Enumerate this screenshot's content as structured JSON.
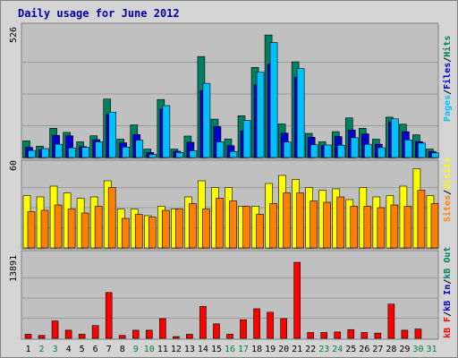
{
  "title": "Daily usage for June 2012",
  "colors": {
    "background": "#d4d4d4",
    "plot": "#c0c0c0",
    "pages": "#008060",
    "files": "#0000d0",
    "hits": "#00c0ff",
    "visits": "#ffff00",
    "sites": "#ff8000",
    "kbin": "#0000d0",
    "kbout": "#008060",
    "kbf": "#ff0000"
  },
  "chart_data": [
    {
      "type": "bar",
      "panel": "hits",
      "categories": [
        "1",
        "2",
        "3",
        "4",
        "5",
        "6",
        "7",
        "8",
        "9",
        "10",
        "11",
        "12",
        "13",
        "14",
        "15",
        "16",
        "17",
        "18",
        "19",
        "20",
        "21",
        "22",
        "23",
        "24",
        "25",
        "26",
        "27",
        "28",
        "29",
        "30",
        "31"
      ],
      "max_label": "526",
      "ylim": [
        0,
        526
      ],
      "side_label": [
        "Pages",
        "Files",
        "Hits"
      ],
      "series": [
        {
          "name": "Pages",
          "values": [
            69,
            47,
            121,
            104,
            65,
            90,
            242,
            76,
            135,
            35,
            240,
            35,
            89,
            418,
            159,
            77,
            173,
            373,
            507,
            139,
            396,
            100,
            65,
            107,
            164,
            121,
            76,
            167,
            138,
            94,
            35
          ]
        },
        {
          "name": "Files",
          "values": [
            42,
            32,
            92,
            90,
            45,
            74,
            178,
            61,
            95,
            21,
            201,
            26,
            63,
            277,
            128,
            49,
            110,
            301,
            386,
            101,
            332,
            84,
            50,
            87,
            114,
            98,
            55,
            148,
            107,
            66,
            25
          ]
        },
        {
          "name": "Hits",
          "values": [
            29,
            37,
            55,
            40,
            42,
            65,
            188,
            43,
            72,
            13,
            215,
            21,
            28,
            307,
            65,
            25,
            153,
            353,
            476,
            64,
            368,
            53,
            52,
            51,
            82,
            55,
            41,
            160,
            73,
            60,
            19
          ]
        }
      ]
    },
    {
      "type": "bar",
      "panel": "visits",
      "categories": [
        "1",
        "2",
        "3",
        "4",
        "5",
        "6",
        "7",
        "8",
        "9",
        "10",
        "11",
        "12",
        "13",
        "14",
        "15",
        "16",
        "17",
        "18",
        "19",
        "20",
        "21",
        "22",
        "23",
        "24",
        "25",
        "26",
        "27",
        "28",
        "29",
        "30",
        "31"
      ],
      "max_label": "60",
      "ylim": [
        0,
        60
      ],
      "side_label": [
        "Sites",
        "Visits"
      ],
      "series": [
        {
          "name": "Visits",
          "values": [
            39,
            38,
            46,
            41,
            37,
            38,
            50,
            29,
            29,
            24,
            31,
            29,
            38,
            50,
            45,
            45,
            31,
            31,
            48,
            54,
            51,
            45,
            43,
            44,
            36,
            45,
            38,
            39,
            46,
            59,
            39
          ]
        },
        {
          "name": "Sites",
          "values": [
            27,
            28,
            32,
            29,
            26,
            31,
            45,
            22,
            25,
            23,
            28,
            29,
            33,
            29,
            37,
            35,
            31,
            25,
            33,
            41,
            41,
            35,
            34,
            38,
            31,
            31,
            30,
            32,
            31,
            43,
            33
          ]
        }
      ]
    },
    {
      "type": "bar",
      "panel": "kbytes",
      "categories": [
        "1",
        "2",
        "3",
        "4",
        "5",
        "6",
        "7",
        "8",
        "9",
        "10",
        "11",
        "12",
        "13",
        "14",
        "15",
        "16",
        "17",
        "18",
        "19",
        "20",
        "21",
        "22",
        "23",
        "24",
        "25",
        "26",
        "27",
        "28",
        "29",
        "30",
        "31"
      ],
      "max_label": "13891",
      "ylim": [
        0,
        13891
      ],
      "side_label": [
        "kB F",
        "kB In",
        "kB Out"
      ],
      "series": [
        {
          "name": "kB F",
          "values": [
            700,
            500,
            3000,
            1400,
            700,
            2200,
            7900,
            500,
            1400,
            1400,
            3400,
            300,
            700,
            5500,
            2500,
            700,
            3200,
            5100,
            4500,
            3400,
            13100,
            1000,
            1000,
            1100,
            1500,
            1000,
            900,
            5900,
            1400,
            1600,
            0
          ]
        }
      ]
    }
  ]
}
